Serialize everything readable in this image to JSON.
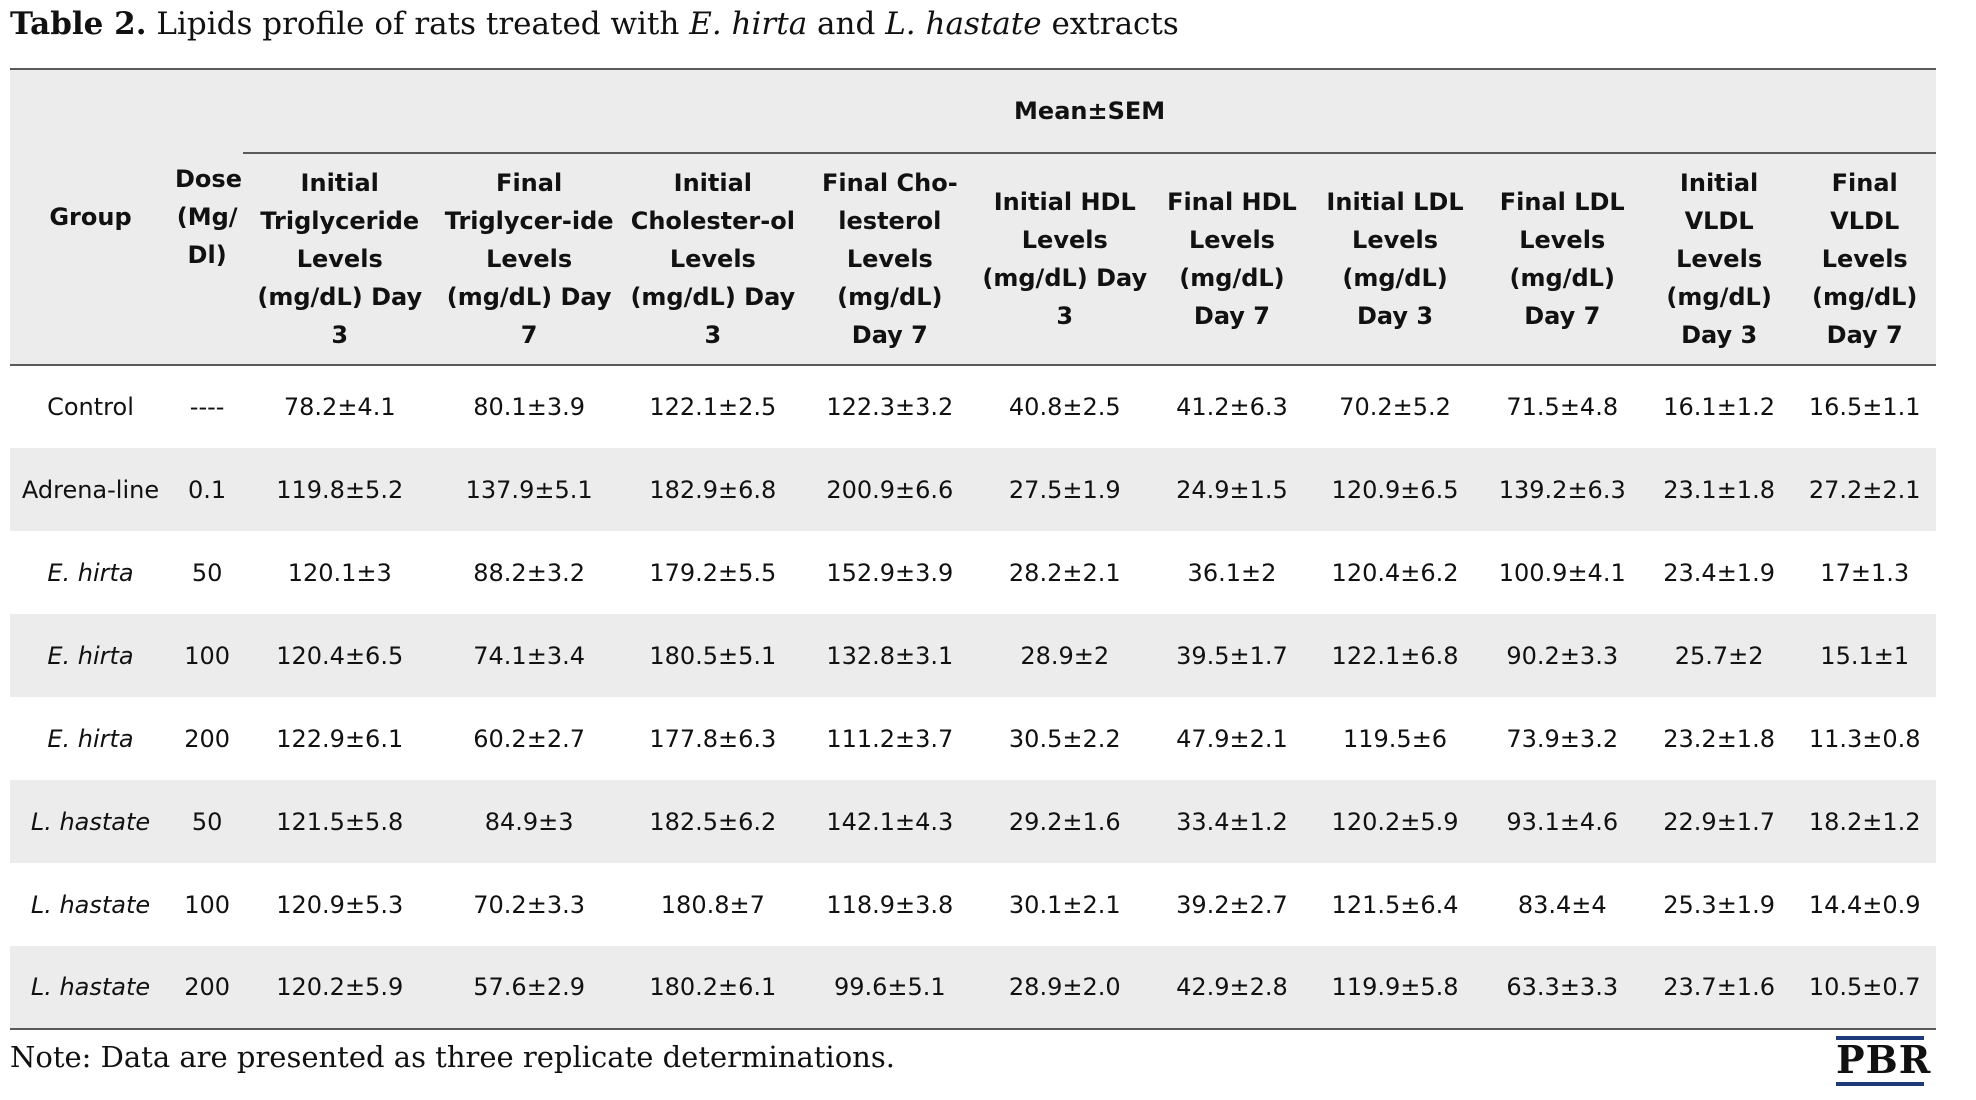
{
  "caption": {
    "label": "Table 2.",
    "text_part1": " Lipids profile of rats treated with ",
    "species1": "E. hirta",
    "text_part2": " and ",
    "species2": "L. hastate",
    "text_part3": " extracts"
  },
  "table": {
    "header_group": "Group",
    "header_dose": "Dose (Mg/ Dl)",
    "header_mean": "Mean±SEM",
    "columns": [
      "Initial Triglyceride Levels (mg/dL) Day 3",
      "Final Triglycer-ide Levels (mg/dL) Day 7",
      "Initial Cholester-ol Levels (mg/dL) Day 3",
      "Final Cho-lesterol Levels (mg/dL) Day 7",
      "Initial HDL Levels (mg/dL) Day 3",
      "Final HDL Levels (mg/dL) Day 7",
      "Initial LDL Levels (mg/dL) Day 3",
      "Final LDL Levels (mg/dL) Day 7",
      "Initial VLDL Levels (mg/dL) Day 3",
      "Final VLDL Levels (mg/dL) Day 7"
    ],
    "rows": [
      {
        "group": "Control",
        "italic": false,
        "dose": "----",
        "values": [
          "78.2±4.1",
          "80.1±3.9",
          "122.1±2.5",
          "122.3±3.2",
          "40.8±2.5",
          "41.2±6.3",
          "70.2±5.2",
          "71.5±4.8",
          "16.1±1.2",
          "16.5±1.1"
        ]
      },
      {
        "group": "Adrena-line",
        "italic": false,
        "dose": "0.1",
        "values": [
          "119.8±5.2",
          "137.9±5.1",
          "182.9±6.8",
          "200.9±6.6",
          "27.5±1.9",
          "24.9±1.5",
          "120.9±6.5",
          "139.2±6.3",
          "23.1±1.8",
          "27.2±2.1"
        ]
      },
      {
        "group": "E. hirta",
        "italic": true,
        "dose": "50",
        "values": [
          "120.1±3",
          "88.2±3.2",
          "179.2±5.5",
          "152.9±3.9",
          "28.2±2.1",
          "36.1±2",
          "120.4±6.2",
          "100.9±4.1",
          "23.4±1.9",
          "17±1.3"
        ]
      },
      {
        "group": "E. hirta",
        "italic": true,
        "dose": "100",
        "values": [
          "120.4±6.5",
          "74.1±3.4",
          "180.5±5.1",
          "132.8±3.1",
          "28.9±2",
          "39.5±1.7",
          "122.1±6.8",
          "90.2±3.3",
          "25.7±2",
          "15.1±1"
        ]
      },
      {
        "group": "E. hirta",
        "italic": true,
        "dose": "200",
        "values": [
          "122.9±6.1",
          "60.2±2.7",
          "177.8±6.3",
          "111.2±3.7",
          "30.5±2.2",
          "47.9±2.1",
          "119.5±6",
          "73.9±3.2",
          "23.2±1.8",
          "11.3±0.8"
        ]
      },
      {
        "group": "L. hastate",
        "italic": true,
        "dose": "50",
        "values": [
          "121.5±5.8",
          "84.9±3",
          "182.5±6.2",
          "142.1±4.3",
          "29.2±1.6",
          "33.4±1.2",
          "120.2±5.9",
          "93.1±4.6",
          "22.9±1.7",
          "18.2±1.2"
        ]
      },
      {
        "group": "L. hastate",
        "italic": true,
        "dose": "100",
        "values": [
          "120.9±5.3",
          "70.2±3.3",
          "180.8±7",
          "118.9±3.8",
          "30.1±2.1",
          "39.2±2.7",
          "121.5±6.4",
          "83.4±4",
          "25.3±1.9",
          "14.4±0.9"
        ]
      },
      {
        "group": "L. hastate",
        "italic": true,
        "dose": "200",
        "values": [
          "120.2±5.9",
          "57.6±2.9",
          "180.2±6.1",
          "99.6±5.1",
          "28.9±2.0",
          "42.9±2.8",
          "119.9±5.8",
          "63.3±3.3",
          "23.7±1.6",
          "10.5±0.7"
        ]
      }
    ]
  },
  "note": "Note: Data are presented as three replicate determinations.",
  "logo": "PBR",
  "colors": {
    "stripe": "#ececec",
    "rule": "#5a5a5a",
    "logo_rule": "#1f3a7a"
  }
}
